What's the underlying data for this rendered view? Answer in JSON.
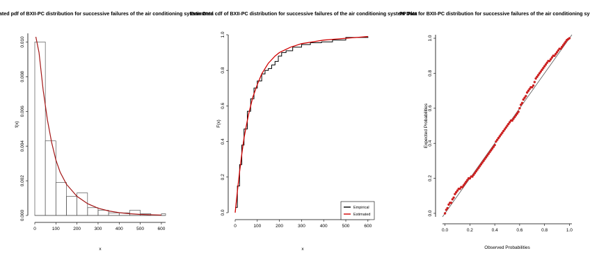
{
  "chart_data": [
    {
      "type": "histogram",
      "title": "Estimated pdf of BXII-PC distribution for successive failures of the air conditioning system Data",
      "xlabel": "x",
      "ylabel": "f(x)",
      "xlim": [
        0,
        620
      ],
      "ylim": [
        0,
        0.0105
      ],
      "xticks": [
        "0",
        "100",
        "200",
        "300",
        "400",
        "500",
        "600"
      ],
      "yticks": [
        "0.000",
        "0.002",
        "0.004",
        "0.006",
        "0.008",
        "0.010"
      ],
      "bins": [
        {
          "x0": 0,
          "x1": 50,
          "density": 0.01
        },
        {
          "x0": 50,
          "x1": 100,
          "density": 0.0043
        },
        {
          "x0": 100,
          "x1": 150,
          "density": 0.0019
        },
        {
          "x0": 150,
          "x1": 200,
          "density": 0.0011
        },
        {
          "x0": 200,
          "x1": 250,
          "density": 0.0013
        },
        {
          "x0": 250,
          "x1": 300,
          "density": 0.00045
        },
        {
          "x0": 300,
          "x1": 350,
          "density": 0.0003
        },
        {
          "x0": 350,
          "x1": 400,
          "density": 0.00015
        },
        {
          "x0": 400,
          "x1": 450,
          "density": 0.00015
        },
        {
          "x0": 450,
          "x1": 500,
          "density": 0.0003
        },
        {
          "x0": 500,
          "x1": 550,
          "density": 0.0001
        },
        {
          "x0": 550,
          "x1": 600,
          "density": 0.0
        },
        {
          "x0": 600,
          "x1": 620,
          "density": 0.0001
        }
      ],
      "fitted_curve": {
        "color": "#a31515",
        "x": [
          5,
          20,
          40,
          60,
          80,
          100,
          120,
          150,
          200,
          250,
          300,
          350,
          400,
          450,
          500,
          550,
          600
        ],
        "y": [
          0.0103,
          0.0094,
          0.0072,
          0.0055,
          0.0042,
          0.0032,
          0.0025,
          0.0018,
          0.0011,
          0.00068,
          0.00042,
          0.00026,
          0.00016,
          0.0001,
          6e-05,
          4e-05,
          2e-05
        ]
      }
    },
    {
      "type": "line",
      "title": "Estimated cdf of BXII-PC distribution for successive failures of the air conditioning system Data",
      "xlabel": "x",
      "ylabel": "F(x)",
      "xlim": [
        0,
        610
      ],
      "ylim": [
        0,
        1
      ],
      "xticks": [
        "0",
        "100",
        "200",
        "300",
        "400",
        "500",
        "600"
      ],
      "yticks": [
        "0.0",
        "0.2",
        "0.4",
        "0.6",
        "0.8",
        "1.0"
      ],
      "legend_position": "bottom-right",
      "series": [
        {
          "name": "Empirical",
          "color": "#000000",
          "step": true,
          "x": [
            0,
            10,
            20,
            30,
            40,
            55,
            70,
            85,
            100,
            120,
            135,
            150,
            165,
            180,
            195,
            210,
            230,
            260,
            300,
            340,
            390,
            440,
            500,
            600
          ],
          "y": [
            0.03,
            0.15,
            0.27,
            0.38,
            0.47,
            0.57,
            0.64,
            0.7,
            0.74,
            0.78,
            0.8,
            0.81,
            0.83,
            0.85,
            0.88,
            0.9,
            0.91,
            0.93,
            0.945,
            0.955,
            0.96,
            0.97,
            0.985,
            0.99
          ]
        },
        {
          "name": "Estimated",
          "color": "#d00000",
          "x": [
            0,
            10,
            20,
            30,
            40,
            60,
            80,
            100,
            120,
            150,
            180,
            200,
            250,
            300,
            350,
            400,
            450,
            500,
            550,
            600
          ],
          "y": [
            0.0,
            0.12,
            0.23,
            0.33,
            0.42,
            0.55,
            0.65,
            0.72,
            0.78,
            0.84,
            0.88,
            0.9,
            0.93,
            0.95,
            0.96,
            0.97,
            0.975,
            0.98,
            0.985,
            0.99
          ]
        }
      ]
    },
    {
      "type": "scatter",
      "title": "PP Plot for BXII-PC distribution for successive failures of the air conditioning system Data",
      "xlabel": "Observed Probabilities",
      "ylabel": "Expected Probabilities",
      "xlim": [
        -0.02,
        1.02
      ],
      "ylim": [
        -0.02,
        1.02
      ],
      "xticks": [
        "0.0",
        "0.2",
        "0.4",
        "0.6",
        "0.8",
        "1.0"
      ],
      "yticks": [
        "0.0",
        "0.2",
        "0.4",
        "0.6",
        "0.8",
        "1.0"
      ],
      "reference_line": {
        "x": [
          -0.02,
          1.02
        ],
        "y": [
          -0.02,
          1.02
        ],
        "color": "#555555"
      },
      "points_color": "#cc1f1f",
      "series": [
        {
          "x": [
            0.0,
            0.01,
            0.02,
            0.03,
            0.04,
            0.05,
            0.06,
            0.07,
            0.08,
            0.09,
            0.1,
            0.11,
            0.12,
            0.13,
            0.14,
            0.15,
            0.16,
            0.17,
            0.18,
            0.19,
            0.2,
            0.21,
            0.22,
            0.23,
            0.24,
            0.25,
            0.26,
            0.27,
            0.28,
            0.29,
            0.3,
            0.31,
            0.32,
            0.33,
            0.34,
            0.35,
            0.36,
            0.37,
            0.38,
            0.39,
            0.4,
            0.41,
            0.42,
            0.43,
            0.44,
            0.45,
            0.46,
            0.47,
            0.48,
            0.49,
            0.5,
            0.51,
            0.52,
            0.53,
            0.54,
            0.55,
            0.56,
            0.57,
            0.58,
            0.59,
            0.6,
            0.61,
            0.62,
            0.63,
            0.64,
            0.65,
            0.66,
            0.67,
            0.68,
            0.69,
            0.7,
            0.71,
            0.72,
            0.73,
            0.74,
            0.75,
            0.76,
            0.77,
            0.78,
            0.79,
            0.8,
            0.81,
            0.82,
            0.83,
            0.84,
            0.85,
            0.86,
            0.87,
            0.88,
            0.89,
            0.9,
            0.91,
            0.92,
            0.93,
            0.94,
            0.95,
            0.96,
            0.97,
            0.98,
            0.99,
            1.0
          ],
          "y": [
            0.0,
            0.02,
            0.03,
            0.05,
            0.06,
            0.06,
            0.08,
            0.09,
            0.11,
            0.12,
            0.13,
            0.14,
            0.14,
            0.15,
            0.15,
            0.16,
            0.17,
            0.18,
            0.19,
            0.2,
            0.2,
            0.21,
            0.21,
            0.22,
            0.23,
            0.24,
            0.25,
            0.26,
            0.27,
            0.28,
            0.29,
            0.3,
            0.31,
            0.32,
            0.33,
            0.34,
            0.35,
            0.36,
            0.37,
            0.38,
            0.39,
            0.41,
            0.42,
            0.43,
            0.44,
            0.45,
            0.46,
            0.47,
            0.48,
            0.49,
            0.5,
            0.51,
            0.52,
            0.53,
            0.53,
            0.54,
            0.55,
            0.56,
            0.57,
            0.58,
            0.6,
            0.62,
            0.63,
            0.65,
            0.66,
            0.67,
            0.69,
            0.7,
            0.71,
            0.72,
            0.72,
            0.73,
            0.75,
            0.77,
            0.78,
            0.79,
            0.8,
            0.81,
            0.82,
            0.83,
            0.84,
            0.85,
            0.86,
            0.87,
            0.87,
            0.88,
            0.89,
            0.9,
            0.9,
            0.91,
            0.92,
            0.93,
            0.94,
            0.94,
            0.95,
            0.96,
            0.97,
            0.98,
            0.99,
            0.995,
            1.0
          ]
        }
      ]
    }
  ]
}
